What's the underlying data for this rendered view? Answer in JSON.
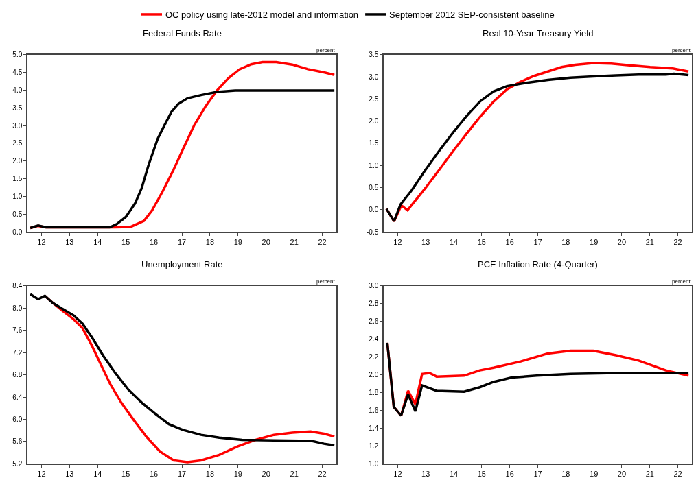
{
  "chart_data": [
    {
      "type": "line",
      "title": "Federal Funds Rate",
      "ylabel": "percent",
      "xlim": [
        11.5,
        22.5
      ],
      "xticks": [
        12,
        13,
        14,
        15,
        16,
        17,
        18,
        19,
        20,
        21,
        22
      ],
      "ylim": [
        0,
        5
      ],
      "yticks": [
        {
          "value": 0,
          "label": "0.0"
        },
        {
          "value": 0.5,
          "label": "0.5"
        },
        {
          "value": 1,
          "label": "1.0"
        },
        {
          "value": 1.5,
          "label": "1.5"
        },
        {
          "value": 2,
          "label": "2.0"
        },
        {
          "value": 2.5,
          "label": "2.5"
        },
        {
          "value": 3,
          "label": "3.0"
        },
        {
          "value": 3.5,
          "label": "3.5"
        },
        {
          "value": 4,
          "label": "4.0"
        },
        {
          "value": 4.5,
          "label": "4.5"
        },
        {
          "value": 5,
          "label": "5.0"
        }
      ],
      "legend": "top",
      "line_style": "solid",
      "marker": "none",
      "series": [
        {
          "name": "OC policy using late-2012 model and information",
          "color": "#ff0000",
          "x": [
            11.6,
            11.88,
            12.16,
            14.6,
            15.17,
            15.65,
            15.94,
            16.3,
            16.7,
            17.03,
            17.44,
            17.85,
            18.25,
            18.66,
            19.06,
            19.47,
            19.87,
            20.36,
            20.93,
            21.49,
            22.06,
            22.43
          ],
          "values": [
            0.11,
            0.17,
            0.13,
            0.13,
            0.14,
            0.31,
            0.61,
            1.12,
            1.75,
            2.32,
            3.01,
            3.55,
            3.99,
            4.34,
            4.59,
            4.73,
            4.79,
            4.79,
            4.72,
            4.59,
            4.5,
            4.43
          ]
        },
        {
          "name": "September 2012 SEP-consistent baseline",
          "color": "#000000",
          "x": [
            11.6,
            11.88,
            12.16,
            14.43,
            14.68,
            15.0,
            15.33,
            15.57,
            15.81,
            16.14,
            16.38,
            16.63,
            16.87,
            17.2,
            17.68,
            18.25,
            18.9,
            22.43
          ],
          "values": [
            0.11,
            0.18,
            0.13,
            0.13,
            0.22,
            0.42,
            0.8,
            1.24,
            1.88,
            2.63,
            3.01,
            3.39,
            3.61,
            3.77,
            3.86,
            3.95,
            3.99,
            3.99
          ]
        }
      ]
    },
    {
      "type": "line",
      "title": "Real 10-Year Treasury Yield",
      "ylabel": "percent",
      "xlim": [
        11.5,
        22.5
      ],
      "xticks": [
        12,
        13,
        14,
        15,
        16,
        17,
        18,
        19,
        20,
        21,
        22
      ],
      "ylim": [
        -0.5,
        3.5
      ],
      "yticks": [
        {
          "value": -0.5,
          "label": "-0.5"
        },
        {
          "value": 0,
          "label": "0.0"
        },
        {
          "value": 0.5,
          "label": "0.5"
        },
        {
          "value": 1,
          "label": "1.0"
        },
        {
          "value": 1.5,
          "label": "1.5"
        },
        {
          "value": 2,
          "label": "2.0"
        },
        {
          "value": 2.5,
          "label": "2.5"
        },
        {
          "value": 3,
          "label": "3.0"
        },
        {
          "value": 3.5,
          "label": "3.5"
        }
      ],
      "line_style": "solid",
      "marker": "none",
      "series": [
        {
          "color": "#ff0000",
          "x": [
            11.6,
            11.87,
            12.13,
            12.35,
            12.99,
            13.48,
            13.96,
            14.45,
            14.93,
            15.42,
            15.9,
            16.39,
            16.87,
            17.36,
            17.85,
            18.33,
            18.98,
            19.63,
            20.28,
            21.01,
            21.82,
            22.38
          ],
          "values": [
            0.02,
            -0.26,
            0.1,
            -0.01,
            0.49,
            0.9,
            1.31,
            1.71,
            2.09,
            2.44,
            2.72,
            2.89,
            3.02,
            3.12,
            3.22,
            3.27,
            3.31,
            3.3,
            3.26,
            3.22,
            3.19,
            3.12
          ]
        },
        {
          "color": "#000000",
          "x": [
            11.6,
            11.87,
            12.1,
            12.5,
            12.99,
            13.48,
            13.96,
            14.45,
            14.93,
            15.42,
            15.9,
            16.55,
            17.36,
            18.17,
            18.98,
            19.79,
            20.6,
            21.57,
            21.86,
            22.38
          ],
          "values": [
            0.02,
            -0.26,
            0.12,
            0.44,
            0.9,
            1.33,
            1.73,
            2.11,
            2.44,
            2.67,
            2.79,
            2.86,
            2.93,
            2.98,
            3.01,
            3.03,
            3.05,
            3.05,
            3.07,
            3.04
          ]
        }
      ]
    },
    {
      "type": "line",
      "title": "Unemployment Rate",
      "ylabel": "percent",
      "xlim": [
        11.5,
        22.5
      ],
      "xticks": [
        12,
        13,
        14,
        15,
        16,
        17,
        18,
        19,
        20,
        21,
        22
      ],
      "ylim": [
        5.2,
        8.4
      ],
      "yticks": [
        {
          "value": 5.2,
          "label": "5.2"
        },
        {
          "value": 5.6,
          "label": "5.6"
        },
        {
          "value": 6,
          "label": "6.0"
        },
        {
          "value": 6.4,
          "label": "6.4"
        },
        {
          "value": 6.8,
          "label": "6.8"
        },
        {
          "value": 7.2,
          "label": "7.2"
        },
        {
          "value": 7.6,
          "label": "7.6"
        },
        {
          "value": 8,
          "label": "8.0"
        },
        {
          "value": 8.4,
          "label": "8.4"
        }
      ],
      "line_style": "solid",
      "marker": "none",
      "series": [
        {
          "color": "#ff0000",
          "x": [
            12.12,
            12.41,
            12.73,
            13.14,
            13.46,
            13.79,
            14.11,
            14.44,
            14.84,
            15.25,
            15.73,
            16.22,
            16.71,
            17.2,
            17.68,
            18.33,
            18.98,
            19.63,
            20.28,
            20.93,
            21.58,
            22.06,
            22.43
          ],
          "values": [
            8.22,
            8.09,
            7.96,
            7.8,
            7.64,
            7.33,
            6.99,
            6.64,
            6.3,
            6.01,
            5.69,
            5.42,
            5.26,
            5.23,
            5.26,
            5.36,
            5.51,
            5.63,
            5.72,
            5.76,
            5.78,
            5.74,
            5.69
          ]
        },
        {
          "color": "#000000",
          "x": [
            11.6,
            11.88,
            12.12,
            12.41,
            12.73,
            13.14,
            13.46,
            13.79,
            14.19,
            14.6,
            15.08,
            15.57,
            16.05,
            16.54,
            17.03,
            17.68,
            18.33,
            19.14,
            20.28,
            21.62,
            22.06,
            22.43
          ],
          "values": [
            8.25,
            8.16,
            8.22,
            8.09,
            7.99,
            7.87,
            7.72,
            7.48,
            7.15,
            6.85,
            6.54,
            6.3,
            6.1,
            5.91,
            5.81,
            5.72,
            5.67,
            5.63,
            5.62,
            5.61,
            5.56,
            5.53
          ]
        }
      ]
    },
    {
      "type": "line",
      "title": "PCE Inflation Rate (4-Quarter)",
      "ylabel": "percent",
      "xlim": [
        11.5,
        22.5
      ],
      "xticks": [
        12,
        13,
        14,
        15,
        16,
        17,
        18,
        19,
        20,
        21,
        22
      ],
      "ylim": [
        1,
        3
      ],
      "yticks": [
        {
          "value": 1,
          "label": "1.0"
        },
        {
          "value": 1.2,
          "label": "1.2"
        },
        {
          "value": 1.4,
          "label": "1.4"
        },
        {
          "value": 1.6,
          "label": "1.6"
        },
        {
          "value": 1.8,
          "label": "1.8"
        },
        {
          "value": 2,
          "label": "2.0"
        },
        {
          "value": 2.2,
          "label": "2.2"
        },
        {
          "value": 2.4,
          "label": "2.4"
        },
        {
          "value": 2.6,
          "label": "2.6"
        },
        {
          "value": 2.8,
          "label": "2.8"
        },
        {
          "value": 3,
          "label": "3.0"
        }
      ],
      "line_style": "solid",
      "marker": "none",
      "series": [
        {
          "color": "#ff0000",
          "x": [
            11.63,
            11.86,
            12.12,
            12.37,
            12.63,
            12.87,
            13.14,
            13.39,
            14.37,
            14.93,
            15.42,
            16.39,
            17.36,
            18.17,
            18.98,
            19.79,
            20.6,
            21.57,
            22.38
          ],
          "values": [
            2.36,
            1.64,
            1.54,
            1.82,
            1.67,
            2.01,
            2.02,
            1.98,
            1.99,
            2.05,
            2.08,
            2.15,
            2.24,
            2.27,
            2.27,
            2.22,
            2.16,
            2.05,
            1.99
          ]
        },
        {
          "color": "#000000",
          "x": [
            11.63,
            11.86,
            12.12,
            12.37,
            12.63,
            12.87,
            13.39,
            14.37,
            14.93,
            15.42,
            16.07,
            16.96,
            18.17,
            19.79,
            22.38
          ],
          "values": [
            2.36,
            1.64,
            1.54,
            1.78,
            1.59,
            1.88,
            1.82,
            1.81,
            1.86,
            1.92,
            1.97,
            1.99,
            2.01,
            2.02,
            2.02
          ]
        }
      ]
    }
  ]
}
